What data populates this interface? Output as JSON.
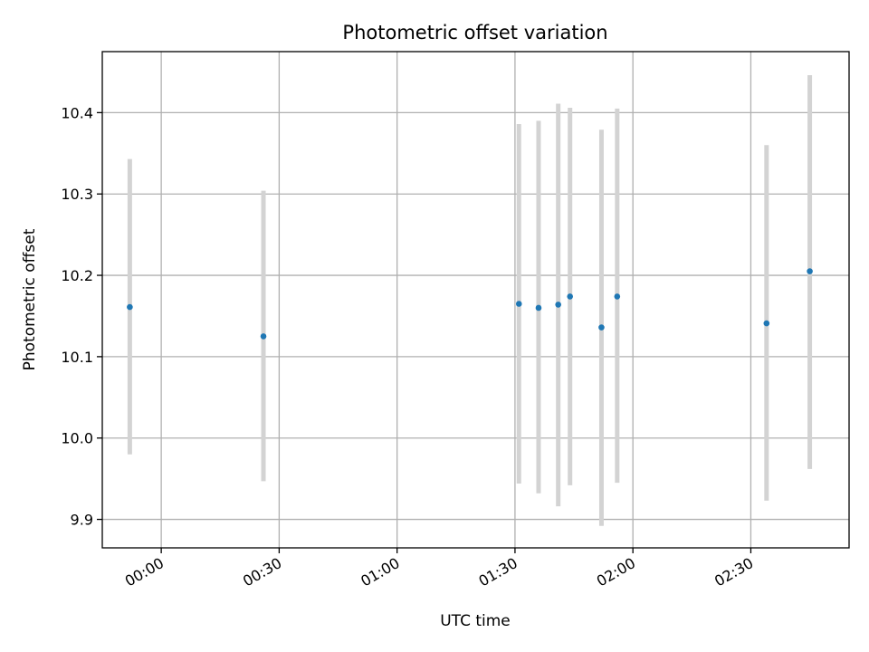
{
  "chart_data": {
    "type": "scatter",
    "title": "Photometric offset variation",
    "xlabel": "UTC time",
    "ylabel": "Photometric offset",
    "grid": true,
    "xlim": [
      "23:45",
      "02:55"
    ],
    "ylim": [
      9.865,
      10.475
    ],
    "x_ticks": [
      "00:00",
      "00:30",
      "01:00",
      "01:30",
      "02:00",
      "02:30"
    ],
    "y_ticks": [
      9.9,
      10.0,
      10.1,
      10.2,
      10.3,
      10.4
    ],
    "y_tick_labels": [
      "9.9",
      "10.0",
      "10.1",
      "10.2",
      "10.3",
      "10.4"
    ],
    "colors": {
      "point": "#1f77b4",
      "errorbar": "#d3d3d3",
      "grid": "#b0b0b0"
    },
    "series": [
      {
        "points": [
          {
            "x": "23:52",
            "y": 10.161,
            "low": 9.98,
            "high": 10.343
          },
          {
            "x": "00:26",
            "y": 10.125,
            "low": 9.947,
            "high": 10.304
          },
          {
            "x": "01:31",
            "y": 10.165,
            "low": 9.944,
            "high": 10.386
          },
          {
            "x": "01:36",
            "y": 10.16,
            "low": 9.932,
            "high": 10.39
          },
          {
            "x": "01:41",
            "y": 10.164,
            "low": 9.916,
            "high": 10.411
          },
          {
            "x": "01:44",
            "y": 10.174,
            "low": 9.942,
            "high": 10.406
          },
          {
            "x": "01:52",
            "y": 10.136,
            "low": 9.892,
            "high": 10.379
          },
          {
            "x": "01:56",
            "y": 10.174,
            "low": 9.945,
            "high": 10.405
          },
          {
            "x": "02:34",
            "y": 10.141,
            "low": 9.923,
            "high": 10.36
          },
          {
            "x": "02:45",
            "y": 10.205,
            "low": 9.962,
            "high": 10.446
          }
        ]
      }
    ]
  }
}
